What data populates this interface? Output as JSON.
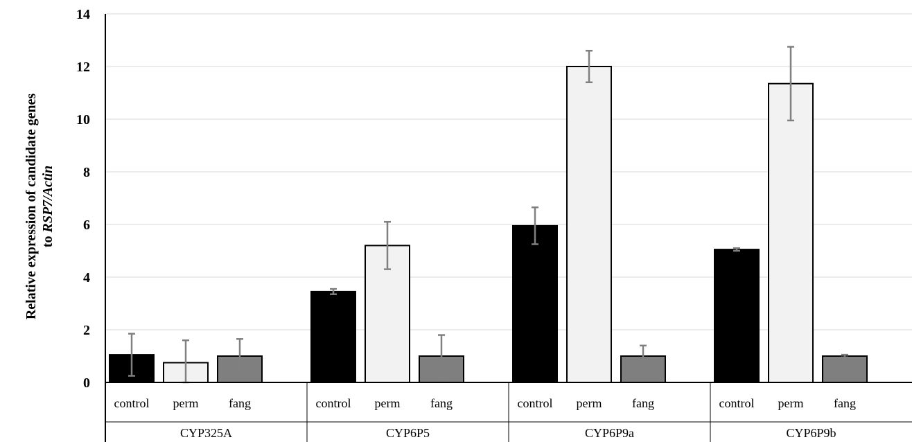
{
  "chart_data": {
    "type": "bar",
    "ylabel_line1": "Relative expression of candidate genes",
    "ylabel_line2_prefix": "to ",
    "ylabel_line2_italic": "RSP7/Actin",
    "ylim": [
      0,
      14
    ],
    "yticks": [
      "0",
      "2",
      "4",
      "6",
      "8",
      "10",
      "12",
      "14"
    ],
    "grid": true,
    "groups": [
      "CYP325A",
      "CYP6P5",
      "CYP6P9a",
      "CYP6P9b"
    ],
    "series": [
      {
        "name": "control",
        "color": "#000000",
        "values": [
          1.05,
          3.45,
          5.95,
          5.05
        ],
        "errors": [
          0.8,
          0.1,
          0.7,
          0.05
        ]
      },
      {
        "name": "perm",
        "color": "#f2f2f2",
        "values": [
          0.75,
          5.2,
          12.0,
          11.35
        ],
        "errors": [
          0.85,
          0.9,
          0.6,
          1.4
        ]
      },
      {
        "name": "fang",
        "color": "#7f7f7f",
        "values": [
          1.0,
          1.0,
          1.0,
          1.0
        ],
        "errors": [
          0.65,
          0.8,
          0.4,
          0.05
        ]
      }
    ],
    "error_bar_color": "#808080"
  }
}
